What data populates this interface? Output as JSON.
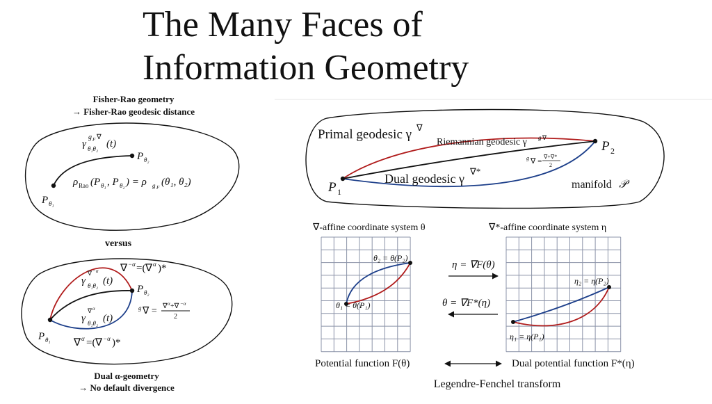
{
  "title": {
    "line1": "The Many Faces of",
    "line2": "Information Geometry"
  },
  "fisher_rao": {
    "heading": "Fisher-Rao geometry",
    "subheading": "→ Fisher-Rao geodesic distance",
    "geodesic": [
      "γ",
      "g",
      "F",
      "∇",
      "θ₁θ₂",
      "(t)"
    ],
    "p2": [
      "P",
      "θ₂"
    ],
    "p1": [
      "P",
      "θ₁"
    ],
    "distance": [
      "ρ",
      "Rao",
      "(P",
      "θ₁",
      ", P",
      "θ₂",
      ") = ρ",
      "g",
      "F",
      "(θ₁, θ₂)"
    ]
  },
  "versus": "versus",
  "dual_alpha": {
    "primal_label": [
      "∇",
      "−α",
      "=(",
      "∇",
      "α",
      ")*"
    ],
    "primal_geodesic": [
      "γ",
      "∇",
      "−α",
      "θ₁θ₂",
      "(t)"
    ],
    "p2": [
      "P",
      "θ₂"
    ],
    "dual_geodesic": [
      "γ",
      "∇",
      "α",
      "θ₁θ₂",
      "(t)"
    ],
    "levi_civita": [
      "g",
      "∇ =",
      "∇",
      "α",
      "+∇",
      "−α",
      "2"
    ],
    "p1": [
      "P",
      "θ₁"
    ],
    "dual_label": [
      "∇",
      "α",
      "=(",
      "∇",
      "−α",
      ")*"
    ],
    "heading": "Dual α-geometry",
    "subheading": "→ No default divergence"
  },
  "manifold": {
    "primal": [
      "Primal geodesic γ",
      "∇"
    ],
    "riemannian": [
      "Riemannian geodesic γ",
      "g",
      "∇"
    ],
    "levi_civita": [
      "g",
      "∇ =",
      "∇+∇*",
      "2"
    ],
    "p2": [
      "P",
      "2"
    ],
    "p1": [
      "P",
      "1"
    ],
    "dual": [
      "Dual geodesic γ",
      "∇*"
    ],
    "name": [
      "manifold",
      "𝒫"
    ]
  },
  "coordinates": {
    "primal_title": "∇-affine coordinate system θ",
    "dual_title": "∇*-affine coordinate system η",
    "theta2": "θ₂ = θ(P₂)",
    "theta1": "θ₁ = θ(P₁)",
    "forward": "η = ∇F(θ)",
    "backward": "θ = ∇F*(η)",
    "eta2": "η₂ = η(P₂)",
    "eta1": "η₁ = η(P₁)",
    "potential": "Potential function F(θ)",
    "dual_potential": "Dual potential function F*(η)",
    "transform": "Legendre-Fenchel transform"
  }
}
